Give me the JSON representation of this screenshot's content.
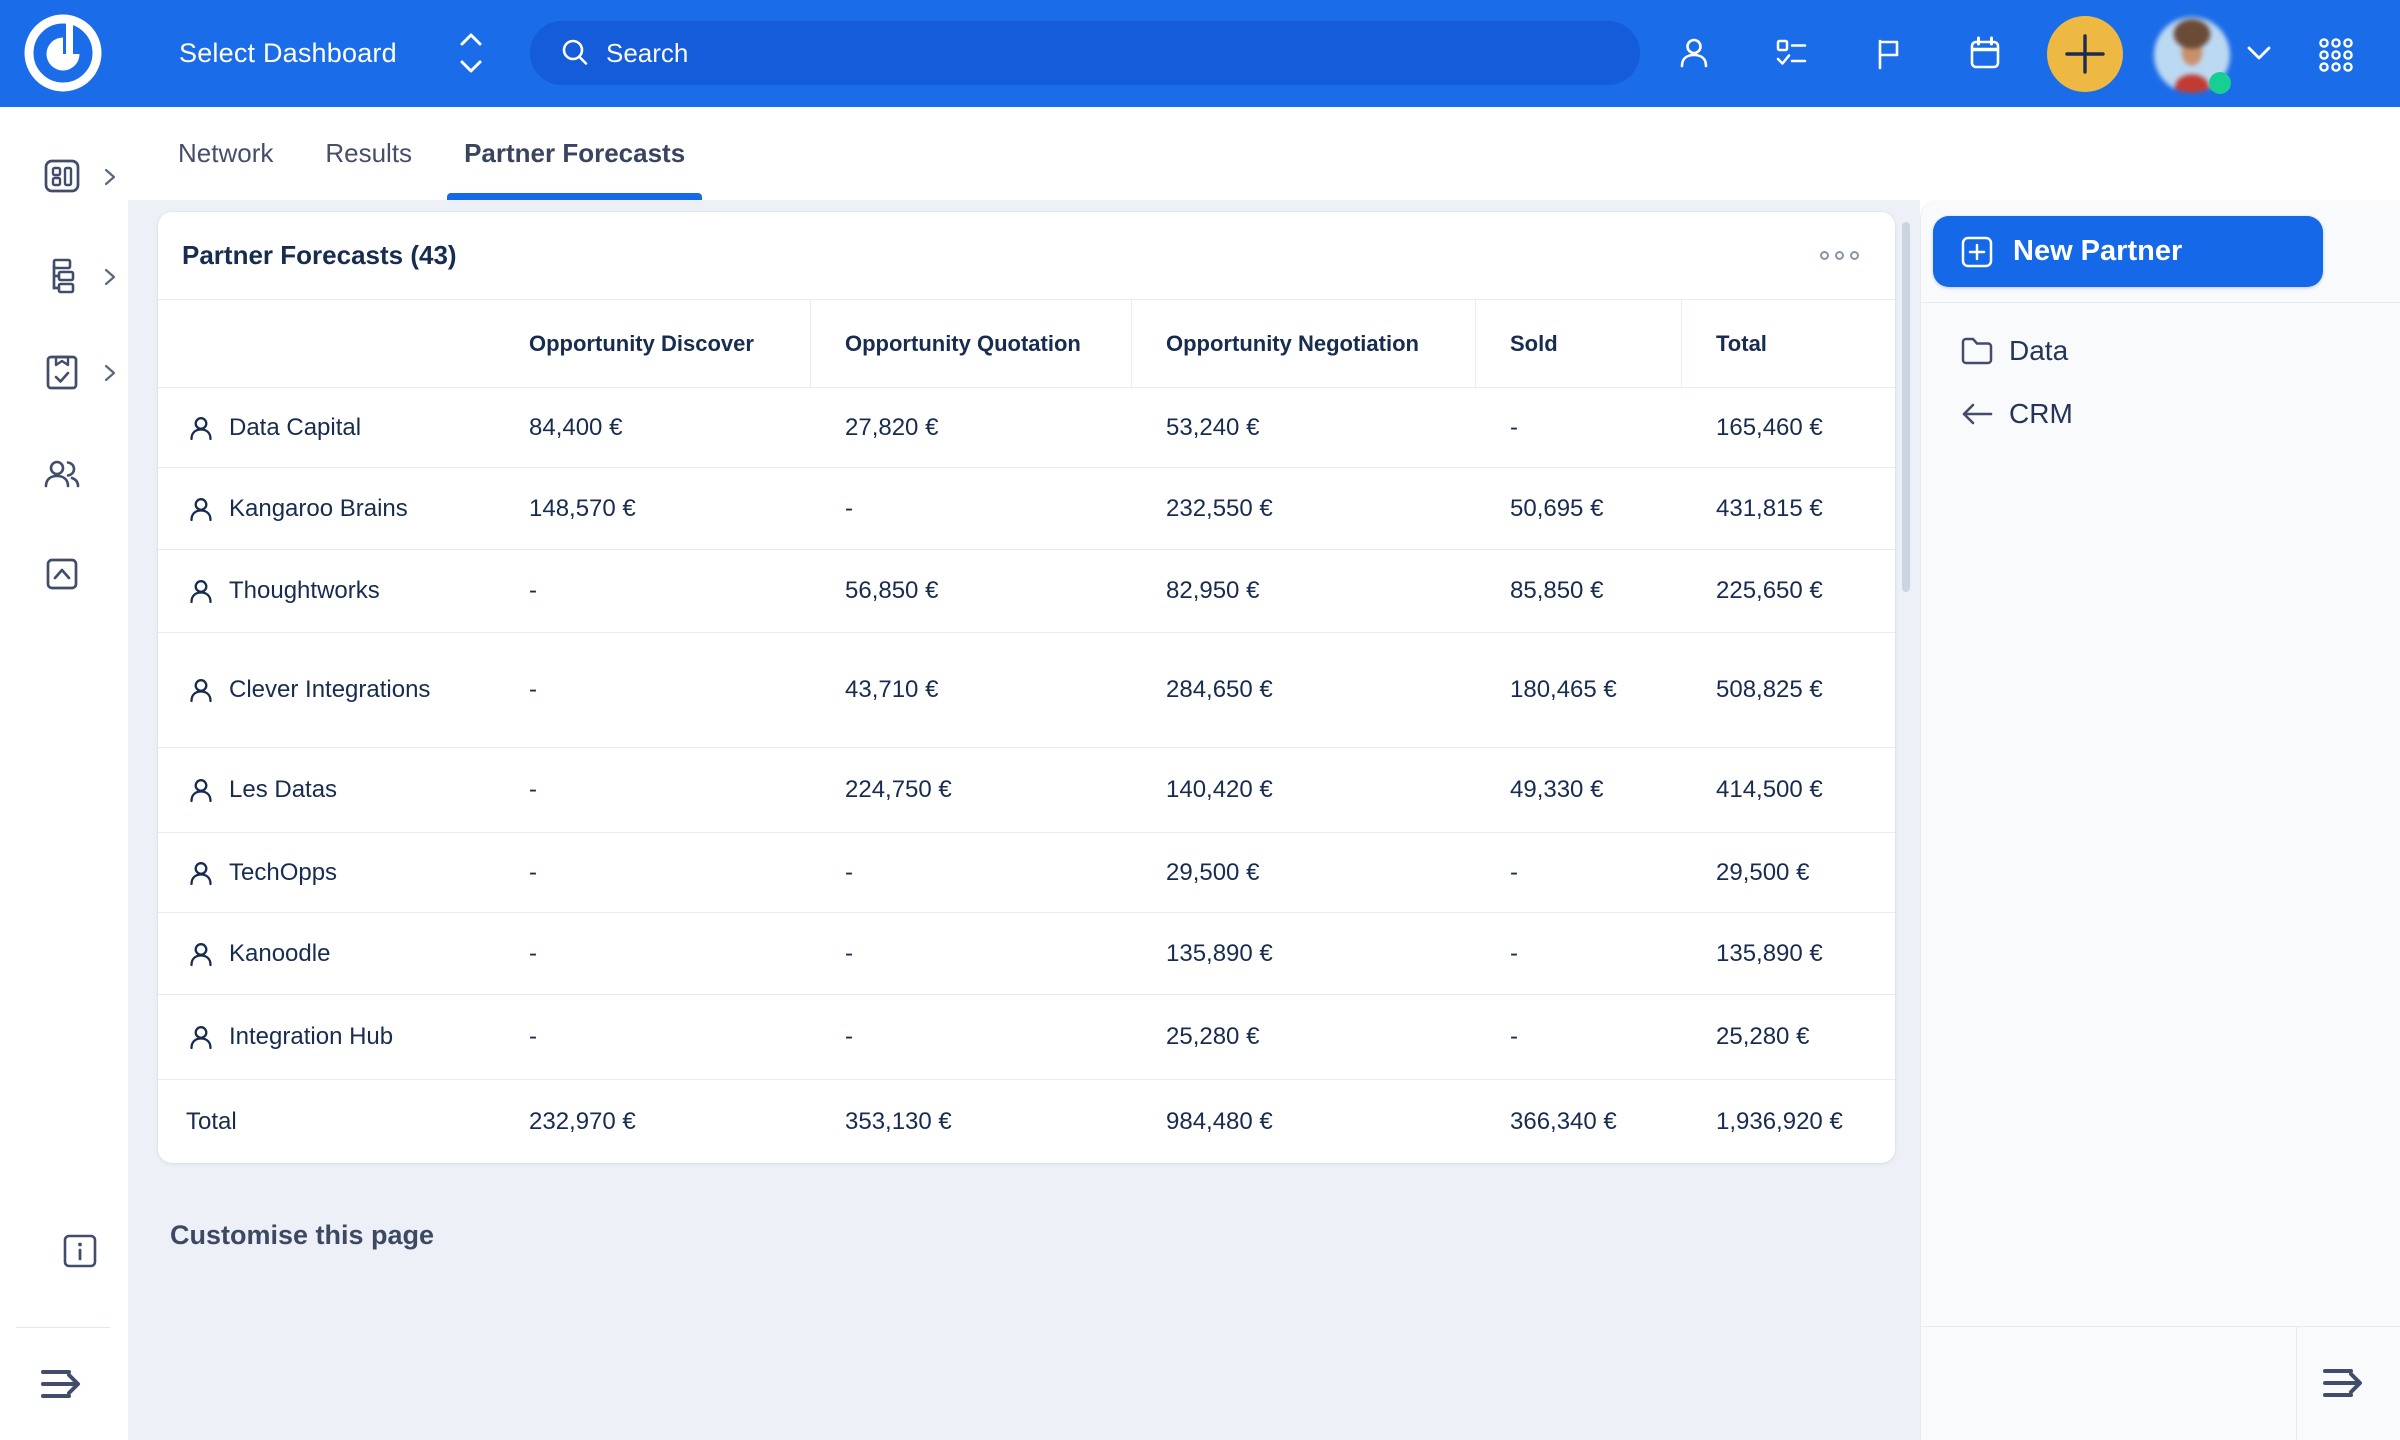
{
  "colors": {
    "topbar": "#1B6CE9",
    "search_pill": "#145CD9",
    "accent_blue": "#1568E7",
    "add_button_yellow": "#EDB943",
    "presence_green": "#17CE93",
    "content_bg": "#EDF1F7",
    "panel_bg": "#F8FAFC",
    "text_navy": "#172C4F",
    "icon_slate": "#414D6B",
    "separator": "#E8ECF2"
  },
  "topbar": {
    "selector_label": "Select Dashboard",
    "search_placeholder": "Search",
    "icons": [
      "profile-icon",
      "tasks-icon",
      "flag-icon",
      "calendar-icon",
      "add-icon",
      "avatar",
      "chevron-down-icon",
      "apps-grid-icon"
    ]
  },
  "sidebar": {
    "items": [
      {
        "icon": "dashboards-icon",
        "expandable": true
      },
      {
        "icon": "hierarchy-icon",
        "expandable": true
      },
      {
        "icon": "clipboard-check-icon",
        "expandable": true
      },
      {
        "icon": "contacts-icon",
        "expandable": false
      },
      {
        "icon": "archive-up-icon",
        "expandable": false
      }
    ],
    "footer_icons": [
      "info-icon",
      "expand-sidebar-icon"
    ]
  },
  "tabs": [
    {
      "label": "Network",
      "active": false
    },
    {
      "label": "Results",
      "active": false
    },
    {
      "label": "Partner Forecasts",
      "active": true
    }
  ],
  "card": {
    "title": "Partner Forecasts (43)",
    "menu_icon": "ellipsis-icon",
    "columns": [
      "",
      "Opportunity Discover",
      "Opportunity Quotation",
      "Opportunity Negotiation",
      "Sold",
      "Total"
    ],
    "rows": [
      {
        "name": "Data Capital",
        "values": [
          "84,400 €",
          "27,820 €",
          "53,240 €",
          "-",
          "165,460 €"
        ]
      },
      {
        "name": "Kangaroo Brains",
        "values": [
          "148,570 €",
          "-",
          "232,550 €",
          "50,695 €",
          "431,815 €"
        ]
      },
      {
        "name": "Thoughtworks",
        "values": [
          "-",
          "56,850 €",
          "82,950 €",
          "85,850 €",
          "225,650 €"
        ]
      },
      {
        "name": "Clever Integrations",
        "values": [
          "-",
          "43,710 €",
          "284,650 €",
          "180,465 €",
          "508,825 €"
        ]
      },
      {
        "name": "Les Datas",
        "values": [
          "-",
          "224,750 €",
          "140,420 €",
          "49,330 €",
          "414,500 €"
        ]
      },
      {
        "name": "TechOpps",
        "values": [
          "-",
          "-",
          "29,500 €",
          "-",
          "29,500 €"
        ]
      },
      {
        "name": "Kanoodle",
        "values": [
          "-",
          "-",
          "135,890 €",
          "-",
          "135,890 €"
        ]
      },
      {
        "name": "Integration Hub",
        "values": [
          "-",
          "-",
          "25,280 €",
          "-",
          "25,280 €"
        ]
      }
    ],
    "total": {
      "label": "Total",
      "values": [
        "232,970 €",
        "353,130 €",
        "984,480 €",
        "366,340 €",
        "1,936,920 €"
      ]
    }
  },
  "page": {
    "customise_link": "Customise this page"
  },
  "right_panel": {
    "new_partner_label": "New Partner",
    "items": [
      {
        "label": "Data",
        "icon": "folder-icon"
      },
      {
        "label": "CRM",
        "icon": "arrow-left-icon"
      }
    ]
  }
}
